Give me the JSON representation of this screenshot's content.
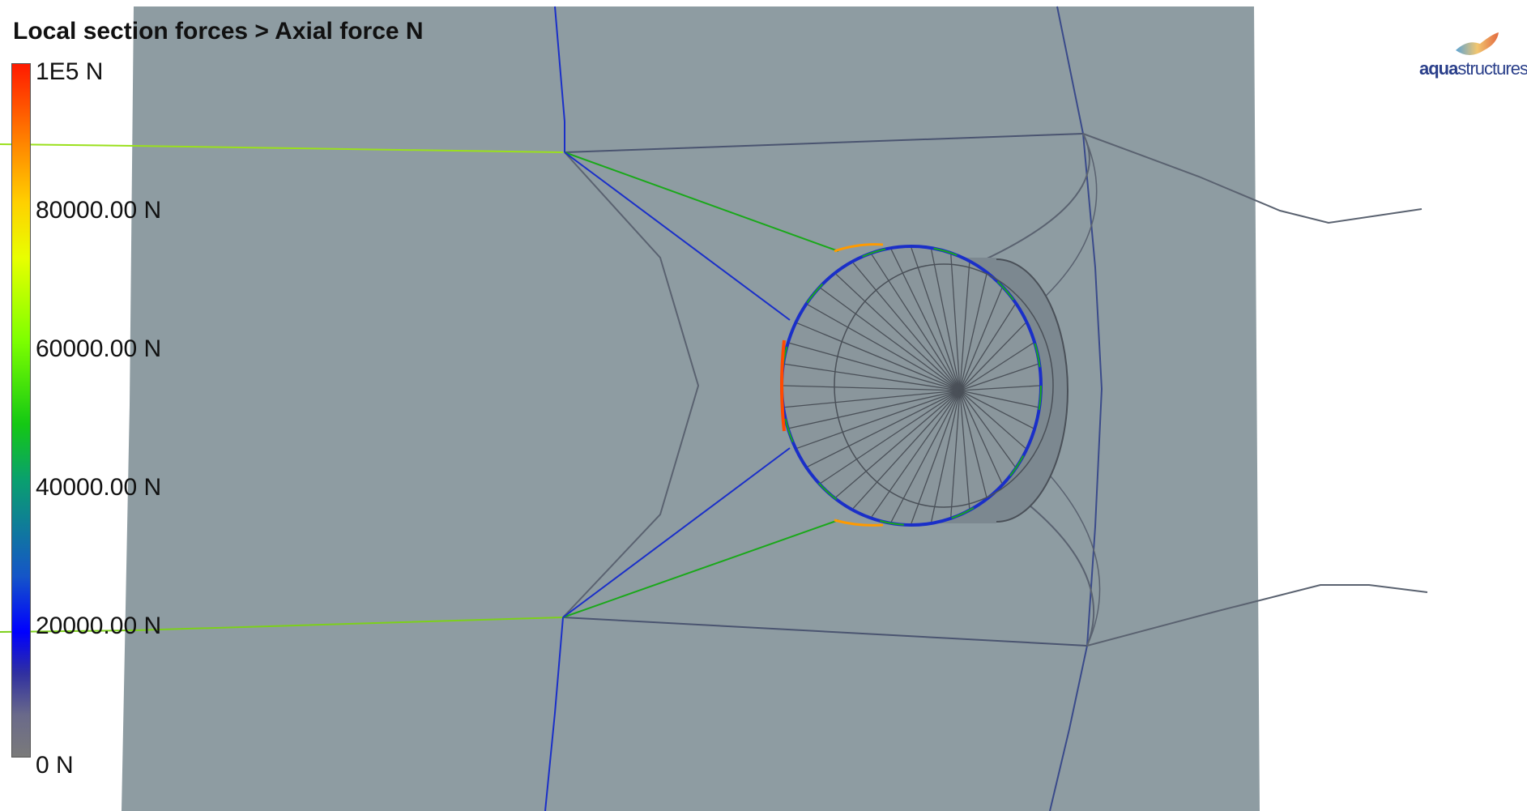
{
  "view": {
    "title": "Local section forces > Axial force N"
  },
  "legend": {
    "quantity": "Axial force N",
    "ticks": [
      {
        "label": "1E5 N",
        "value": 100000
      },
      {
        "label": "80000.00 N",
        "value": 80000
      },
      {
        "label": "60000.00 N",
        "value": 60000
      },
      {
        "label": "40000.00 N",
        "value": 40000
      },
      {
        "label": "20000.00 N",
        "value": 20000
      },
      {
        "label": "0 N",
        "value": 0
      }
    ],
    "colors": [
      "#ff1a00",
      "#ffd000",
      "#7dff00",
      "#0aa06e",
      "#0000ff",
      "#7a7a7a"
    ]
  },
  "logo": {
    "bold": "aqua",
    "rest": "structures",
    "mark": "®"
  },
  "scene": {
    "background_color": "#8e9ca2",
    "mesh_color": "#5a6570",
    "rope_colors": {
      "green": "#1aa81a",
      "lime": "#8fdc1a",
      "blue": "#1a2fc8",
      "grey": "#6a6e7a"
    }
  }
}
